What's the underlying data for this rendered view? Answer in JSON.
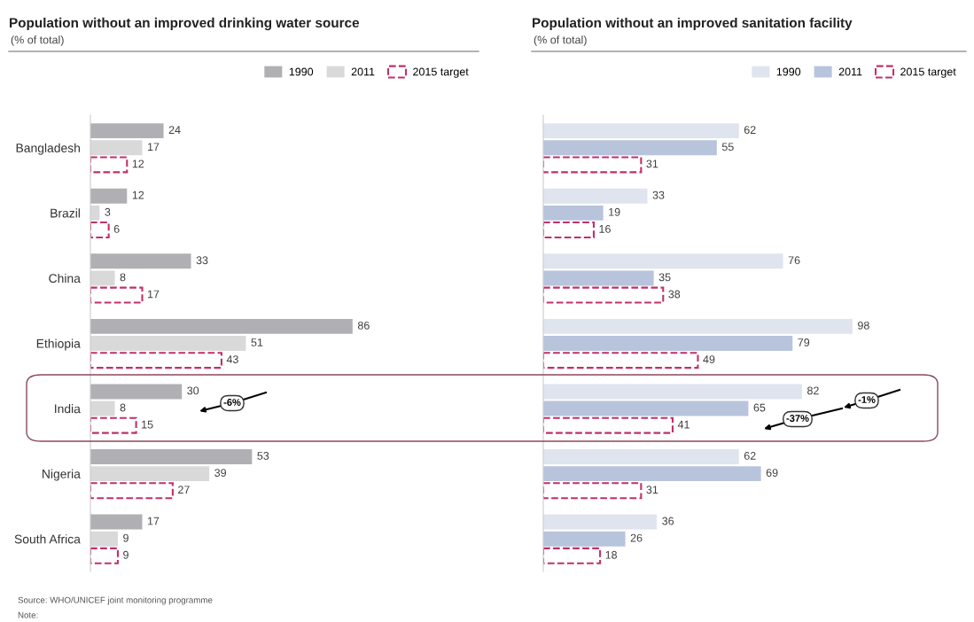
{
  "chart_data": [
    {
      "type": "bar",
      "orientation": "horizontal",
      "title": "Population without an improved drinking water source",
      "subtitle": "(% of total)",
      "categories": [
        "Bangladesh",
        "Brazil",
        "China",
        "Ethiopia",
        "India",
        "Nigeria",
        "South Africa"
      ],
      "series": [
        {
          "name": "1990",
          "color": "#b0afb3",
          "values": [
            24,
            12,
            33,
            86,
            30,
            53,
            17
          ]
        },
        {
          "name": "2011",
          "color": "#d9d9d9",
          "values": [
            17,
            3,
            8,
            51,
            8,
            39,
            9
          ]
        },
        {
          "name": "2015 target",
          "color": "#c0306a",
          "line_style": "dashed",
          "values": [
            12,
            6,
            17,
            43,
            15,
            27,
            9
          ]
        }
      ],
      "data_labels": true,
      "legend": "top right",
      "annotations": [
        "-6%",
        "Source: WHO/UNICEF joint monitoring programme",
        "Note:"
      ]
    },
    {
      "type": "bar",
      "orientation": "horizontal",
      "title": "Population without an improved sanitation facility",
      "subtitle": "(% of total)",
      "categories": [
        null,
        null,
        null,
        null,
        null,
        null,
        null
      ],
      "series": [
        {
          "name": "1990",
          "color": "#dfe4ef",
          "values": [
            62,
            33,
            76,
            98,
            82,
            62,
            36
          ]
        },
        {
          "name": "2011",
          "color": "#b8c4dc",
          "values": [
            55,
            19,
            35,
            79,
            65,
            69,
            26
          ]
        },
        {
          "name": "2015 target",
          "color": "#c0306a",
          "line_style": "dashed",
          "values": [
            31,
            16,
            38,
            49,
            41,
            31,
            18
          ]
        }
      ],
      "data_labels": true,
      "legend": "top right",
      "annotations": [
        "-1%",
        "-37%"
      ]
    }
  ]
}
